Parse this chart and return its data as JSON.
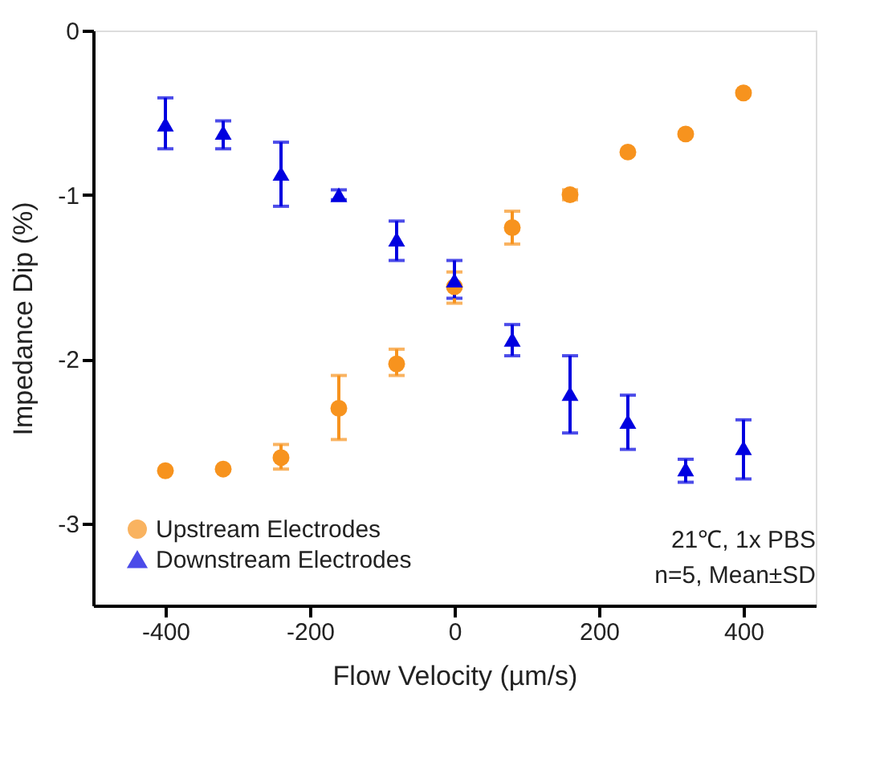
{
  "chart_data": {
    "type": "scatter",
    "xlabel": "Flow Velocity (µm/s)",
    "ylabel": "Impedance Dip (%)",
    "x": [
      -400,
      -320,
      -240,
      -160,
      -80,
      0,
      80,
      160,
      240,
      320,
      400
    ],
    "series": [
      {
        "name": "Upstream Electrodes",
        "color": "#f7931e",
        "marker": "circle",
        "values": [
          -2.68,
          -2.67,
          -2.6,
          -2.3,
          -2.03,
          -1.56,
          -1.2,
          -1.0,
          -0.74,
          -0.63,
          -0.38
        ],
        "errors": [
          null,
          null,
          [
            -2.67,
            -2.52
          ],
          [
            -2.49,
            -2.1
          ],
          [
            -2.1,
            -1.94
          ],
          [
            -1.66,
            -1.47
          ],
          [
            -1.3,
            -1.1
          ],
          [
            -1.03,
            -0.97
          ],
          null,
          null,
          null
        ]
      },
      {
        "name": "Downstream Electrodes",
        "color": "#0000e0",
        "marker": "triangle",
        "values": [
          -0.57,
          -0.62,
          -0.87,
          -1.0,
          -1.27,
          -1.52,
          -1.88,
          -2.21,
          -2.38,
          -2.67,
          -2.54
        ],
        "errors": [
          [
            -0.72,
            -0.41
          ],
          [
            -0.72,
            -0.55
          ],
          [
            -1.07,
            -0.68
          ],
          [
            -1.03,
            -0.97
          ],
          [
            -1.4,
            -1.16
          ],
          [
            -1.63,
            -1.4
          ],
          [
            -1.98,
            -1.79
          ],
          [
            -2.45,
            -1.98
          ],
          [
            -2.55,
            -2.22
          ],
          [
            -2.75,
            -2.61
          ],
          [
            -2.73,
            -2.37
          ]
        ]
      }
    ],
    "xlim": [
      -500,
      500
    ],
    "xticks": [
      -400,
      -200,
      0,
      200,
      400
    ],
    "ylim": [
      -3.5,
      0
    ],
    "yticks": [
      -3,
      -2,
      -1,
      0
    ],
    "grid": false,
    "legend": "bottom left",
    "annotations": [
      "21℃, 1x PBS",
      "n=5, Mean±SD"
    ]
  }
}
